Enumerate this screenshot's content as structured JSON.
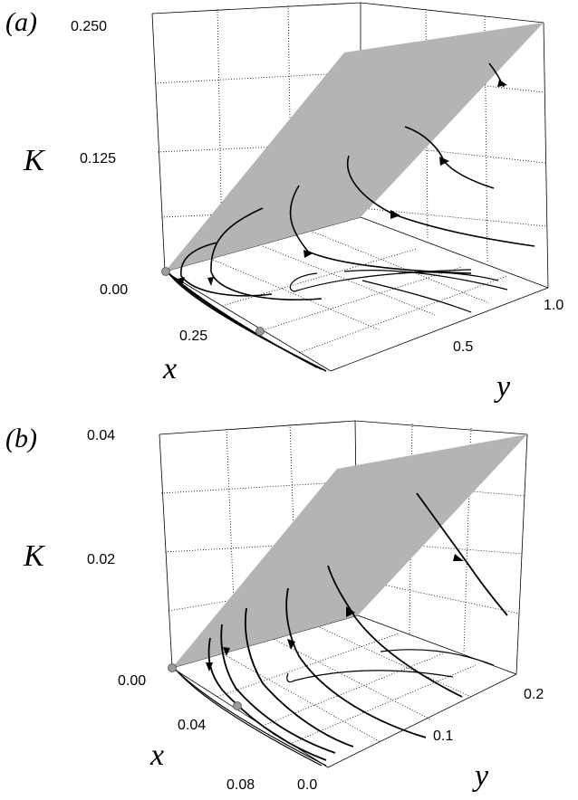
{
  "chart_data": [
    {
      "type": "3d-surface-trajectories",
      "panel_label": "(a)",
      "zlabel": "K",
      "xlabel": "x",
      "ylabel": "y",
      "z_ticks": [
        "0.250",
        "0.125",
        "0.00"
      ],
      "x_ticks": [
        "0.25"
      ],
      "y_ticks": [
        "1.0",
        "0.5"
      ],
      "zlim": [
        0,
        0.25
      ],
      "ylim": [
        0,
        1.0
      ],
      "xlim": [
        0,
        0.5
      ],
      "surface_color": "#b4b4b4",
      "fixed_point_color": "#9a9a9a"
    },
    {
      "type": "3d-surface-trajectories",
      "panel_label": "(b)",
      "zlabel": "K",
      "xlabel": "x",
      "ylabel": "y",
      "z_ticks": [
        "0.04",
        "0.02",
        "0.00"
      ],
      "x_ticks": [
        "0.04",
        "0.08"
      ],
      "y_ticks": [
        "0.2",
        "0.1",
        "0.0"
      ],
      "zlim": [
        0,
        0.04
      ],
      "ylim": [
        0,
        0.2
      ],
      "xlim": [
        0,
        0.08
      ],
      "surface_color": "#b4b4b4",
      "fixed_point_color": "#9a9a9a"
    }
  ]
}
